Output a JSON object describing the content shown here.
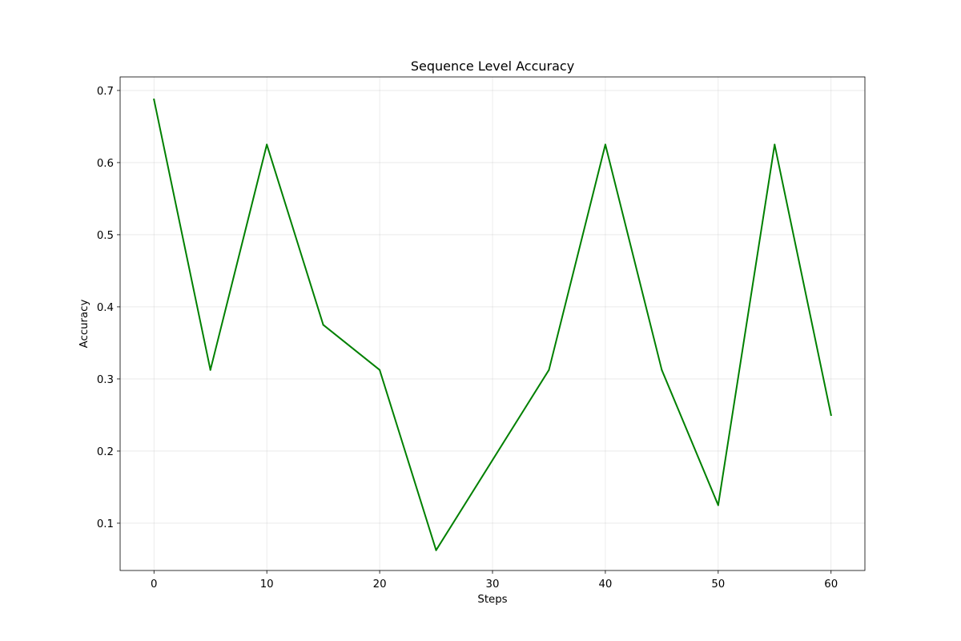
{
  "chart_data": {
    "type": "line",
    "title": "Sequence Level Accuracy",
    "xlabel": "Steps",
    "ylabel": "Accuracy",
    "xlim": [
      -3,
      63
    ],
    "ylim": [
      0.0344,
      0.7188
    ],
    "x_ticks": [
      0,
      10,
      20,
      30,
      40,
      50,
      60
    ],
    "y_ticks": [
      0.1,
      0.2,
      0.3,
      0.4,
      0.5,
      0.6,
      0.7
    ],
    "grid": true,
    "legend": false,
    "series": [
      {
        "color": "#008000",
        "x": [
          0,
          5,
          10,
          15,
          20,
          25,
          30,
          35,
          40,
          45,
          50,
          55,
          60
        ],
        "y": [
          0.6875,
          0.3125,
          0.625,
          0.375,
          0.3125,
          0.0625,
          0.1875,
          0.3125,
          0.625,
          0.3125,
          0.125,
          0.625,
          0.25
        ]
      }
    ]
  }
}
